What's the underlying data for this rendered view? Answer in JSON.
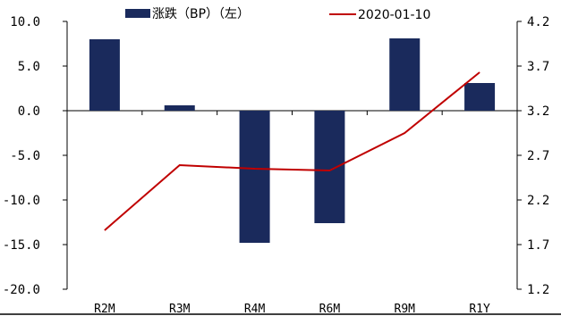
{
  "chart_data": {
    "type": "bar",
    "categories": [
      "R2M",
      "R3M",
      "R4M",
      "R6M",
      "R9M",
      "R1Y"
    ],
    "series": [
      {
        "name": "涨跌（BP）（左）",
        "type": "bar",
        "axis": "left",
        "color": "#1a2a5c",
        "values": [
          8.0,
          0.6,
          -14.8,
          -12.6,
          8.1,
          3.1
        ]
      },
      {
        "name": "2020-01-10",
        "type": "line",
        "axis": "right",
        "color": "#c00000",
        "values": [
          1.86,
          2.59,
          2.55,
          2.53,
          2.95,
          3.63
        ]
      }
    ],
    "left_axis": {
      "ylim": [
        -20,
        10
      ],
      "ticks": [
        10,
        5,
        0,
        -5,
        -10,
        -15,
        -20
      ],
      "tick_labels": [
        "10.0",
        "5.0",
        "0.0",
        "-5.0",
        "-10.0",
        "-15.0",
        "-20.0"
      ]
    },
    "right_axis": {
      "ylim": [
        1.2,
        4.2
      ],
      "ticks": [
        4.2,
        3.7,
        3.2,
        2.7,
        2.2,
        1.7,
        1.2
      ],
      "tick_labels": [
        "4.2",
        "3.7",
        "3.2",
        "2.7",
        "2.2",
        "1.7",
        "1.2"
      ]
    },
    "legend": {
      "placement": "top"
    },
    "grid": false
  }
}
